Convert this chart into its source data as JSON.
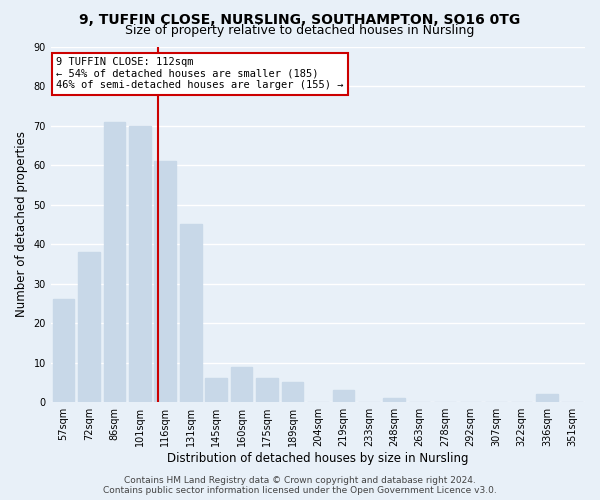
{
  "title1": "9, TUFFIN CLOSE, NURSLING, SOUTHAMPTON, SO16 0TG",
  "title2": "Size of property relative to detached houses in Nursling",
  "xlabel": "Distribution of detached houses by size in Nursling",
  "ylabel": "Number of detached properties",
  "categories": [
    "57sqm",
    "72sqm",
    "86sqm",
    "101sqm",
    "116sqm",
    "131sqm",
    "145sqm",
    "160sqm",
    "175sqm",
    "189sqm",
    "204sqm",
    "219sqm",
    "233sqm",
    "248sqm",
    "263sqm",
    "278sqm",
    "292sqm",
    "307sqm",
    "322sqm",
    "336sqm",
    "351sqm"
  ],
  "values": [
    26,
    38,
    71,
    70,
    61,
    45,
    6,
    9,
    6,
    5,
    0,
    3,
    0,
    1,
    0,
    0,
    0,
    0,
    0,
    2,
    0
  ],
  "bar_color": "#c8d8e8",
  "vline_x_pos": 3.7,
  "vline_color": "#cc0000",
  "annotation_title": "9 TUFFIN CLOSE: 112sqm",
  "annotation_line1": "← 54% of detached houses are smaller (185)",
  "annotation_line2": "46% of semi-detached houses are larger (155) →",
  "annotation_box_color": "#ffffff",
  "annotation_box_edge_color": "#cc0000",
  "ylim": [
    0,
    90
  ],
  "yticks": [
    0,
    10,
    20,
    30,
    40,
    50,
    60,
    70,
    80,
    90
  ],
  "footer1": "Contains HM Land Registry data © Crown copyright and database right 2024.",
  "footer2": "Contains public sector information licensed under the Open Government Licence v3.0.",
  "bg_color": "#e8f0f8",
  "plot_bg_color": "#e8f0f8",
  "grid_color": "#ffffff",
  "title_fontsize": 10,
  "subtitle_fontsize": 9,
  "axis_label_fontsize": 8.5,
  "tick_fontsize": 7,
  "annotation_fontsize": 7.5,
  "footer_fontsize": 6.5
}
